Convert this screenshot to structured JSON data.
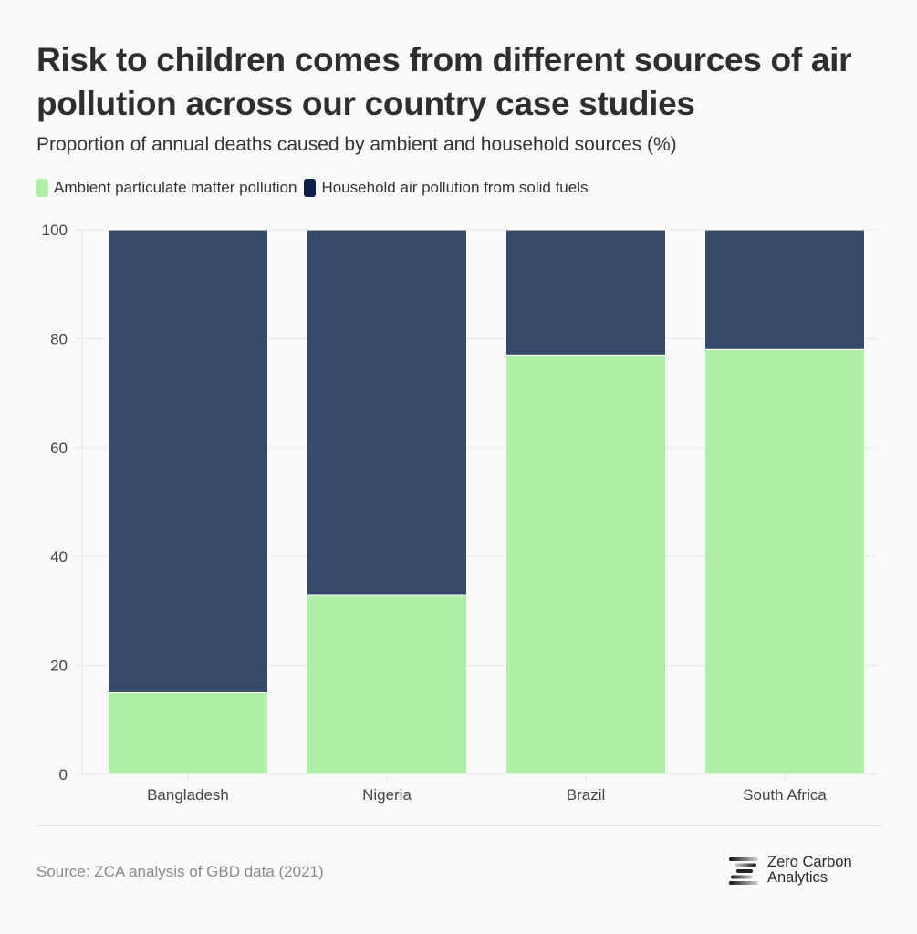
{
  "header": {
    "title": "Risk to children comes from different sources of air pollution across our country case studies",
    "subtitle": "Proportion of annual deaths caused by ambient and household sources (%)"
  },
  "colors": {
    "ambient": "#aef0a8",
    "household": "#384868",
    "household_legend": "#0d1f4a",
    "grid": "#ececec",
    "bar_separator": "#ffffff"
  },
  "chart_data": {
    "type": "bar",
    "stacked": true,
    "title": "Risk to children comes from different sources of air pollution across our country case studies",
    "subtitle": "Proportion of annual deaths caused by ambient and household sources (%)",
    "xlabel": "",
    "ylabel": "",
    "categories": [
      "Bangladesh",
      "Nigeria",
      "Brazil",
      "South Africa"
    ],
    "series": [
      {
        "name": "Ambient particulate matter pollution",
        "values": [
          15,
          33,
          77,
          78
        ]
      },
      {
        "name": "Household air pollution from solid fuels",
        "values": [
          85,
          67,
          23,
          22
        ]
      }
    ],
    "ylim": [
      0,
      100
    ],
    "yticks": [
      0,
      20,
      40,
      60,
      80,
      100
    ],
    "ytick_labels": [
      "0",
      "20",
      "40",
      "60",
      "80",
      "100"
    ],
    "grid": true,
    "legend_position": "top-left"
  },
  "footer": {
    "source": "Source: ZCA analysis of GBD data (2021)",
    "logo_line1": "Zero Carbon",
    "logo_line2": "Analytics"
  }
}
